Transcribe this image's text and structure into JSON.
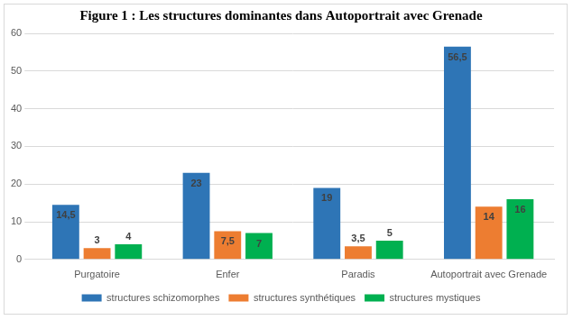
{
  "chart_data": {
    "type": "bar",
    "title": "Figure 1 : Les structures dominantes dans Autoportrait avec Grenade",
    "categories": [
      "Purgatoire",
      "Enfer",
      "Paradis",
      "Autoportrait avec Grenade"
    ],
    "series": [
      {
        "name": "structures schizomorphes",
        "color": "#2e75b6",
        "values": [
          14.5,
          23,
          19,
          56.5
        ],
        "value_labels": [
          "14,5",
          "23",
          "19",
          "56,5"
        ]
      },
      {
        "name": "structures synthétiques",
        "color": "#ed7d31",
        "values": [
          3,
          7.5,
          3.5,
          14
        ],
        "value_labels": [
          "3",
          "7,5",
          "3,5",
          "14"
        ]
      },
      {
        "name": "structures mystiques",
        "color": "#00b050",
        "values": [
          4,
          7,
          5,
          16
        ],
        "value_labels": [
          "4",
          "7",
          "5",
          "16"
        ]
      }
    ],
    "ylim": [
      0,
      60
    ],
    "yticks": [
      0,
      10,
      20,
      30,
      40,
      50,
      60
    ],
    "grid": true,
    "legend": "bottom",
    "data_labels": true
  }
}
